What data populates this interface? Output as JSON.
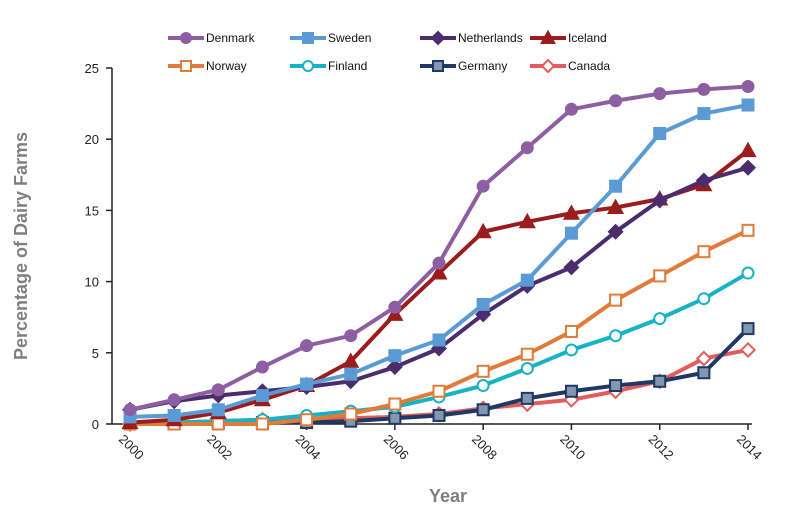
{
  "chart_data": {
    "type": "line",
    "title": "",
    "xlabel": "Year",
    "ylabel": "Percentage of Dairy Farms",
    "xlim": [
      2000,
      2014
    ],
    "ylim": [
      0,
      25
    ],
    "x_ticks": [
      2000,
      2002,
      2004,
      2006,
      2008,
      2010,
      2012,
      2014
    ],
    "y_ticks": [
      0,
      5,
      10,
      15,
      20,
      25
    ],
    "grid": false,
    "legend_position": "top",
    "x": [
      2000,
      2001,
      2002,
      2003,
      2004,
      2005,
      2006,
      2007,
      2008,
      2009,
      2010,
      2011,
      2012,
      2013,
      2014
    ],
    "series": [
      {
        "name": "Denmark",
        "color": "#8e5ea2",
        "marker": "circle",
        "filled": true,
        "values": [
          1.0,
          1.7,
          2.4,
          4.0,
          5.5,
          6.2,
          8.2,
          11.3,
          16.7,
          19.4,
          22.1,
          22.7,
          23.2,
          23.5,
          23.7
        ]
      },
      {
        "name": "Sweden",
        "color": "#5b9bd5",
        "marker": "square",
        "filled": true,
        "values": [
          0.5,
          0.6,
          1.0,
          2.0,
          2.8,
          3.5,
          4.8,
          5.9,
          8.4,
          10.1,
          13.4,
          16.7,
          20.4,
          21.8,
          22.4
        ]
      },
      {
        "name": "Netherlands",
        "color": "#4b2c6d",
        "marker": "diamond",
        "filled": true,
        "values": [
          1.0,
          1.6,
          2.0,
          2.3,
          2.6,
          3.0,
          4.0,
          5.3,
          7.7,
          9.7,
          11.0,
          13.5,
          15.7,
          17.1,
          18.0
        ]
      },
      {
        "name": "Iceland",
        "color": "#9b1c1c",
        "marker": "triangle",
        "filled": true,
        "values": [
          0.1,
          0.3,
          0.8,
          1.7,
          2.7,
          4.4,
          7.7,
          10.6,
          13.5,
          14.2,
          14.8,
          15.2,
          15.8,
          16.8,
          19.2
        ]
      },
      {
        "name": "Norway",
        "color": "#e07b39",
        "marker": "square",
        "filled": false,
        "values": [
          0.0,
          0.0,
          0.0,
          0.0,
          0.3,
          0.7,
          1.4,
          2.3,
          3.7,
          4.9,
          6.5,
          8.7,
          10.4,
          12.1,
          13.6
        ]
      },
      {
        "name": "Finland",
        "color": "#17b2c4",
        "marker": "circle",
        "filled": false,
        "values": [
          0.1,
          0.1,
          0.2,
          0.3,
          0.6,
          0.9,
          1.2,
          1.9,
          2.7,
          3.9,
          5.2,
          6.2,
          7.4,
          8.8,
          10.6
        ]
      },
      {
        "name": "Germany",
        "color": "#1f3864",
        "marker": "square",
        "filled": true,
        "fill": "#8497b0",
        "values": [
          0.0,
          0.0,
          0.1,
          0.1,
          0.1,
          0.2,
          0.4,
          0.6,
          1.0,
          1.8,
          2.3,
          2.7,
          3.0,
          3.6,
          6.7
        ]
      },
      {
        "name": "Canada",
        "color": "#e35b5b",
        "marker": "diamond",
        "filled": false,
        "values": [
          0.0,
          0.1,
          0.2,
          0.3,
          0.3,
          0.4,
          0.5,
          0.7,
          1.1,
          1.4,
          1.7,
          2.3,
          3.0,
          4.6,
          5.2
        ]
      }
    ]
  }
}
